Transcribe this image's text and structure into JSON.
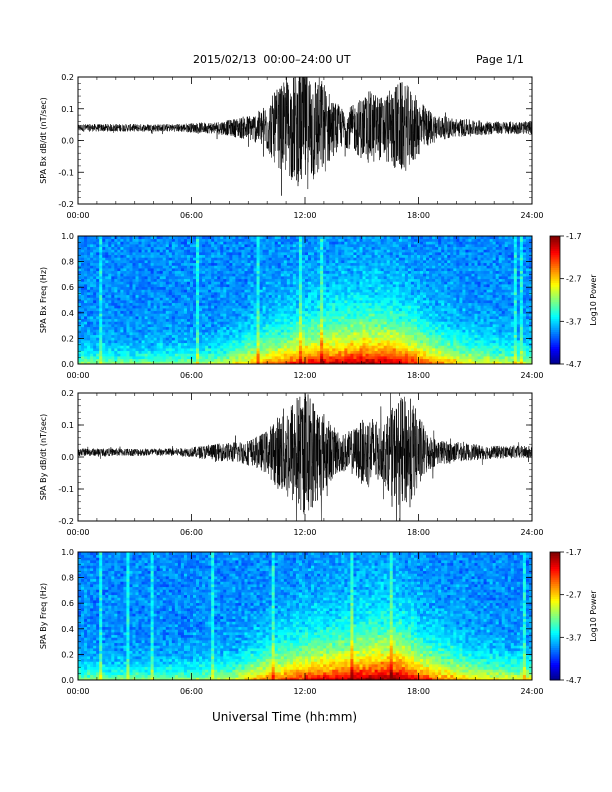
{
  "header": {
    "title": "2015/02/13  00:00–24:00 UT",
    "page": "Page 1/1"
  },
  "footer": {
    "xlabel": "Universal Time (hh:mm)"
  },
  "colors": {
    "trace": "#000000",
    "axis": "#000000"
  },
  "chart_data": [
    {
      "type": "line",
      "ylabel": "SPA Bx dB/dt (nT/sec)",
      "xlabel": "",
      "xlim": [
        0,
        24
      ],
      "ylim": [
        -0.2,
        0.2
      ],
      "x_ticks": [
        "00:00",
        "06:00",
        "12:00",
        "18:00",
        "24:00"
      ],
      "y_ticks": [
        "0.2",
        "0.1",
        "0.0",
        "-0.1",
        "-0.2"
      ],
      "series": [
        {
          "x": [
            0,
            1,
            2,
            3,
            4,
            5,
            6,
            7,
            8,
            9,
            9.5,
            10,
            10.5,
            11,
            11.5,
            12,
            12.5,
            13,
            13.5,
            14,
            14.5,
            15,
            15.5,
            16,
            16.5,
            17,
            17.5,
            18,
            18.5,
            19,
            20,
            21,
            22,
            23,
            24
          ],
          "baseline": [
            0.04,
            0.04,
            0.04,
            0.04,
            0.04,
            0.04,
            0.04,
            0.04,
            0.04,
            0.04,
            0.04,
            0.04,
            0.04,
            0.04,
            0.04,
            0.04,
            0.04,
            0.04,
            0.04,
            0.04,
            0.04,
            0.04,
            0.04,
            0.04,
            0.04,
            0.04,
            0.04,
            0.04,
            0.04,
            0.04,
            0.04,
            0.04,
            0.04,
            0.04,
            0.04
          ],
          "envelope": [
            0.012,
            0.012,
            0.012,
            0.012,
            0.012,
            0.012,
            0.015,
            0.018,
            0.025,
            0.04,
            0.05,
            0.08,
            0.12,
            0.15,
            0.18,
            0.2,
            0.18,
            0.15,
            0.09,
            0.06,
            0.07,
            0.1,
            0.12,
            0.1,
            0.12,
            0.15,
            0.13,
            0.09,
            0.06,
            0.04,
            0.03,
            0.025,
            0.02,
            0.02,
            0.02
          ]
        }
      ]
    },
    {
      "type": "heatmap",
      "ylabel": "SPA Bx Freq (Hz)",
      "xlim": [
        0,
        24
      ],
      "ylim": [
        0,
        1.0
      ],
      "x_ticks": [
        "00:00",
        "06:00",
        "12:00",
        "18:00",
        "24:00"
      ],
      "y_ticks": [
        "1.0",
        "0.8",
        "0.6",
        "0.4",
        "0.2",
        "0.0"
      ],
      "colorbar": {
        "label": "Log10 Power",
        "range": [
          -4.7,
          -1.7
        ],
        "ticks": [
          "-1.7",
          "-2.7",
          "-3.7",
          "-4.7"
        ]
      },
      "activity": [
        0.1,
        0.1,
        0.1,
        0.1,
        0.1,
        0.1,
        0.12,
        0.15,
        0.25,
        0.4,
        0.5,
        0.6,
        0.7,
        0.75,
        0.8,
        0.85,
        0.85,
        0.8,
        0.65,
        0.5,
        0.4,
        0.3,
        0.25,
        0.2,
        0.2
      ],
      "activity_hours": [
        0,
        1,
        2,
        3,
        4,
        5,
        6,
        7,
        8,
        9,
        10,
        11,
        12,
        13,
        14,
        15,
        16,
        17,
        18,
        19,
        20,
        21,
        22,
        23,
        24
      ]
    },
    {
      "type": "line",
      "ylabel": "SPA By dB/dt (nT/sec)",
      "xlabel": "",
      "xlim": [
        0,
        24
      ],
      "ylim": [
        -0.2,
        0.2
      ],
      "x_ticks": [
        "00:00",
        "06:00",
        "12:00",
        "18:00",
        "24:00"
      ],
      "y_ticks": [
        "0.2",
        "0.1",
        "0.0",
        "-0.1",
        "-0.2"
      ],
      "series": [
        {
          "x": [
            0,
            1,
            2,
            3,
            4,
            5,
            6,
            7,
            8,
            9,
            9.5,
            10,
            10.5,
            11,
            11.5,
            12,
            12.5,
            13,
            13.5,
            14,
            14.5,
            15,
            15.5,
            16,
            16.5,
            17,
            17.5,
            18,
            18.5,
            19,
            20,
            21,
            22,
            23,
            24
          ],
          "baseline": [
            0.015,
            0.015,
            0.015,
            0.015,
            0.015,
            0.015,
            0.015,
            0.015,
            0.015,
            0.015,
            0.015,
            0.015,
            0.015,
            0.015,
            0.015,
            0.015,
            0.015,
            0.015,
            0.015,
            0.015,
            0.015,
            0.015,
            0.015,
            0.015,
            0.015,
            0.015,
            0.015,
            0.015,
            0.015,
            0.015,
            0.015,
            0.015,
            0.015,
            0.015,
            0.015
          ],
          "envelope": [
            0.012,
            0.012,
            0.012,
            0.012,
            0.012,
            0.012,
            0.015,
            0.025,
            0.03,
            0.04,
            0.05,
            0.07,
            0.11,
            0.15,
            0.18,
            0.2,
            0.17,
            0.13,
            0.08,
            0.06,
            0.07,
            0.1,
            0.12,
            0.08,
            0.13,
            0.17,
            0.18,
            0.12,
            0.06,
            0.04,
            0.03,
            0.025,
            0.02,
            0.02,
            0.02
          ]
        }
      ]
    },
    {
      "type": "heatmap",
      "ylabel": "SPA By Freq (Hz)",
      "xlim": [
        0,
        24
      ],
      "ylim": [
        0,
        1.0
      ],
      "x_ticks": [
        "00:00",
        "06:00",
        "12:00",
        "18:00",
        "24:00"
      ],
      "y_ticks": [
        "1.0",
        "0.8",
        "0.6",
        "0.4",
        "0.2",
        "0.0"
      ],
      "colorbar": {
        "label": "Log10 Power",
        "range": [
          -4.7,
          -1.7
        ],
        "ticks": [
          "-1.7",
          "-2.7",
          "-3.7",
          "-4.7"
        ]
      },
      "activity": [
        0.1,
        0.1,
        0.1,
        0.1,
        0.1,
        0.1,
        0.12,
        0.15,
        0.2,
        0.35,
        0.5,
        0.6,
        0.7,
        0.75,
        0.8,
        0.85,
        0.9,
        0.9,
        0.7,
        0.55,
        0.45,
        0.35,
        0.3,
        0.25,
        0.25
      ],
      "activity_hours": [
        0,
        1,
        2,
        3,
        4,
        5,
        6,
        7,
        8,
        9,
        10,
        11,
        12,
        13,
        14,
        15,
        16,
        17,
        18,
        19,
        20,
        21,
        22,
        23,
        24
      ]
    }
  ]
}
